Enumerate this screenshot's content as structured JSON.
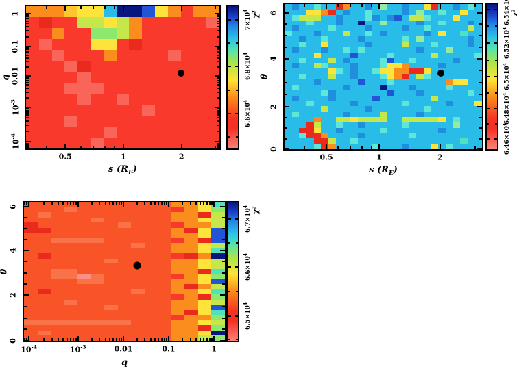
{
  "figure": {
    "background": "#ffffff",
    "description_colors": {
      "frame": "#000000",
      "marker": "#000000"
    }
  },
  "palette": {
    "r": "#f8392b",
    "R": "#ea2a1c",
    "p": "#fa655a",
    "P": "#fc9087",
    "o": "#fb8c1e",
    "Y": "#fdc62c",
    "y": "#fee33a",
    "g": "#c6e74b",
    "G": "#8de96d",
    "t": "#4fe2bd",
    "l": "#5ee6d8",
    "m": "#96eba0",
    "c": "#29bce8",
    "d": "#1f8edd",
    "B": "#2254d6",
    "N": "#0a1680",
    "u": "#f85427",
    "v": "#fa7248"
  },
  "colorbar_gradient": [
    "#fc8478 0%",
    "#f43024 14%",
    "#f63223 21%",
    "#fb8c1a 36%",
    "#ffe434 48%",
    "#abe44a 60%",
    "#55e5ac 69%",
    "#2cc4e8 77%",
    "#2286e2 86%",
    "#1c44d2 92%",
    "#071278 100%"
  ],
  "chart_data": [
    {
      "id": "chi2-map-s-vs-q",
      "type": "heatmap",
      "xlabel": {
        "pre": "s (R",
        "sub": "E",
        "post": ")"
      },
      "ylabel": {
        "text": "q"
      },
      "colorbar_label": {
        "text": "χ",
        "sup": "2"
      },
      "x_axis": {
        "minors_mode": "explicit",
        "majors": [
          {
            "pct": 20.3,
            "label": {
              "text": "0.5"
            }
          },
          {
            "pct": 50.3,
            "label": {
              "text": "1"
            }
          },
          {
            "pct": 80.4,
            "label": {
              "text": "2"
            }
          }
        ],
        "minors_pct": [
          10.7,
          28.2,
          34.9,
          40.7,
          45.8,
          97.9
        ]
      },
      "y_axis": {
        "minors_mode": "log-down",
        "rotated_labels": true,
        "majors": [
          {
            "pct": 5.2,
            "label": {
              "text": "1"
            }
          },
          {
            "pct": 28.4,
            "label": {
              "text": "0.1"
            }
          },
          {
            "pct": 48.8,
            "label": {
              "text": "0.01"
            }
          },
          {
            "pct": 71.0,
            "label": {
              "text": "10",
              "sup": "-3"
            }
          },
          {
            "pct": 95.3,
            "label": {
              "text": "10",
              "sup": "-4"
            }
          }
        ]
      },
      "colorbar": {
        "ticks": [
          {
            "pct": 75.5,
            "label": {
              "text": "6.6×10",
              "sup": "4"
            }
          },
          {
            "pct": 42.5,
            "label": {
              "text": "6.8×10",
              "sup": "4"
            }
          },
          {
            "pct": 9.4,
            "label": {
              "text": "7×10",
              "sup": "4"
            }
          }
        ],
        "minors_pct": [
          92.0,
          59.0,
          26.0
        ]
      },
      "grid": {
        "cols": 15,
        "base": "r",
        "rows": [
          "oooYyycNNByoroo",
          "rRrrggygorrrrrp",
          "rrorrGGgorrrrrr",
          "rprrryyrRrrrrrr",
          "rrprrrorrrrprrr",
          "rrrpRrrrrrrrrrr",
          "rrrrprrrrrrrrrr",
          "rrrppprrrrrrrrr",
          "rrrrprrprrrrrrr",
          "rrrrrrrrrprrrrr",
          "rrrprrrrrrrrrrr",
          "rrrrrrprrrrrrrr",
          "rrrrrprrrrrrrrr"
        ]
      },
      "marker": {
        "x_pct": 80.1,
        "y_pct": 46.9,
        "size": 10,
        "value": {
          "s": 2.1,
          "q": 0.017
        }
      }
    },
    {
      "id": "chi2-map-s-vs-theta",
      "type": "heatmap",
      "xlabel": {
        "pre": "s (R",
        "sub": "E",
        "post": ")"
      },
      "ylabel": {
        "text": "θ"
      },
      "colorbar_label": {
        "text": "χ",
        "sup": "2"
      },
      "x_axis": {
        "minors_mode": "explicit",
        "majors": [
          {
            "pct": 21.2,
            "label": {
              "text": "0.5"
            }
          },
          {
            "pct": 47.9,
            "label": {
              "text": "1"
            }
          },
          {
            "pct": 78.8,
            "label": {
              "text": "2"
            }
          }
        ],
        "minors_pct": [
          9.9,
          27.1,
          33.5,
          39.1,
          44.0,
          96.5
        ]
      },
      "y_axis": {
        "minors_mode": "linear",
        "rotated_labels": true,
        "majors": [
          {
            "pct": 6.0,
            "label": {
              "text": "6"
            }
          },
          {
            "pct": 37.5,
            "label": {
              "text": "4"
            }
          },
          {
            "pct": 70.8,
            "label": {
              "text": "2"
            }
          },
          {
            "pct": 100.0,
            "label": {
              "text": "0"
            }
          }
        ]
      },
      "colorbar": {
        "ticks": [
          {
            "pct": 93.0,
            "label": {
              "text": "6.46×10",
              "sup": "4"
            }
          },
          {
            "pct": 72.2,
            "label": {
              "text": "6.48×10",
              "sup": "4"
            }
          },
          {
            "pct": 50.0,
            "label": {
              "text": "6.5×10",
              "sup": "4"
            }
          },
          {
            "pct": 26.9,
            "label": {
              "text": "6.52×10",
              "sup": "4"
            }
          },
          {
            "pct": 3.7,
            "label": {
              "text": "6.54×10",
              "sup": "4"
            }
          }
        ],
        "minors_pct": [
          82.6,
          61.1,
          38.5,
          15.3
        ]
      },
      "grid": {
        "cols": 27,
        "base": "c",
        "rows": [
          "cdcclccRoccdcmccdccyRccdclc",
          "cccyyoRcdcclccccdcmcclccycc",
          "clgggccdcccldcdBcgglcccyccc",
          "ccclcccdccNccmccccdcclcccdc",
          "cdcccclccccdccccdcclcccccgc",
          "lcccdcccgcclcdcccccdcycctcc",
          "ccdcclccccdccccclcmccccccdc",
          "cclccycccccdccccgccclccccdc",
          "cdcccdcclclcccccccdcccmcccc",
          "ccccyccccBcccclcccccgcccccl",
          "cclcccgcdcccclBcclcccccdccc",
          "cdccglcccdccclyyoccccdccccc",
          "ccccccylcdcclyyooRRyccccccc",
          "cclcccgccdccclyoRcglccccccc",
          "ccccdcccccBccclcccccccoyycc",
          "clccccccdccccNcccdcccclcccc",
          "cccccldcccccccBcccdcccccclc",
          "cdccccdcccccBcccccccgcccccc",
          "ccclcccccdcccccclcccccdcccy",
          "cccccgcccccdccccccclccccccc",
          "clccccccdccccgccccdcccccccc",
          "ccccoccggyggggccgggggyclccc",
          "cccRgcclccdccccclccccccmccc",
          "ccRRyccdccccclcccccccdccccc",
          "cclRRoccccdcccccclccccccccc",
          "ccccRRgcclcccccccccccccctcc",
          "cccclRoccccclcccdcccyclcccc"
        ]
      },
      "marker": {
        "x_pct": 79.1,
        "y_pct": 47.7,
        "size": 10,
        "value": {
          "s": 2.1,
          "theta": 3.3
        }
      }
    },
    {
      "id": "chi2-map-q-vs-theta",
      "type": "heatmap",
      "xlabel": {
        "text": "q"
      },
      "ylabel": {
        "text": "θ"
      },
      "colorbar_label": {
        "text": "χ",
        "sup": "2"
      },
      "x_axis": {
        "minors_mode": "log-left",
        "majors": [
          {
            "pct": 2.4,
            "label": {
              "text": "10",
              "sup": "-4"
            }
          },
          {
            "pct": 26.9,
            "label": {
              "text": "10",
              "sup": "-3"
            }
          },
          {
            "pct": 49.5,
            "label": {
              "text": "0.01"
            }
          },
          {
            "pct": 72.0,
            "label": {
              "text": "0.1"
            }
          },
          {
            "pct": 94.6,
            "label": {
              "text": "1"
            }
          }
        ]
      },
      "y_axis": {
        "minors_mode": "linear",
        "rotated_labels": true,
        "majors": [
          {
            "pct": 3.4,
            "label": {
              "text": "6"
            }
          },
          {
            "pct": 35.0,
            "label": {
              "text": "4"
            }
          },
          {
            "pct": 67.0,
            "label": {
              "text": "2"
            }
          },
          {
            "pct": 100.0,
            "label": {
              "text": "0"
            }
          }
        ]
      },
      "colorbar": {
        "ticks": [
          {
            "pct": 82.1,
            "label": {
              "text": "6.5×10",
              "sup": "4"
            }
          },
          {
            "pct": 46.9,
            "label": {
              "text": "6.6×10",
              "sup": "4"
            }
          },
          {
            "pct": 12.1,
            "label": {
              "text": "6.7×10",
              "sup": "4"
            }
          }
        ],
        "minors_pct": [
          64.5,
          29.5,
          99.0
        ]
      },
      "grid": {
        "cols": 15,
        "base": "u",
        "rows": [
          "uuuuuuuuuuuooyt",
          "uuuvuuuuuuuroyG",
          "uvuuuuuuuuuooRg",
          "uuuuuvuuuuuooyg",
          "Ruuuuuuvuuuroog",
          "RRuuuuuuuuuoRyB",
          "uuuuuuuuuuuooyB",
          "uuvvvvuuuuuroRB",
          "uuuuuuuuvuuooyg",
          "uuuuuuuuuuuooyt",
          "uRuuuuuuuuurRoN",
          "uuuuuuvuuuuooyg",
          "uuuuuuuuuuuooyg",
          "uuvvuuuuuuuooRt",
          "uuvvPvuuuuuroyG",
          "uuuuvvuuuuuooyB",
          "uuuuuuuuuuuoRog",
          "uRuuuuuuvuuooyt",
          "uuuuuuuuuuuroRG",
          "uuuvuuuuuuuooyg",
          "uuuuuuvuuuuooyB",
          "uuuuuuuuuuuoRyt",
          "uuuuuuuuuuurooG",
          "vvvvvvvvuuuooyg",
          "uuuuuuuuuuuooRG",
          "uvuuuuuuuuuooyN",
          "uuuuuuuuuuuoogG"
        ]
      },
      "marker": {
        "x_pct": 56.2,
        "y_pct": 45.9,
        "size": 11,
        "value": {
          "q": 0.02,
          "theta": 3.4
        }
      }
    }
  ]
}
